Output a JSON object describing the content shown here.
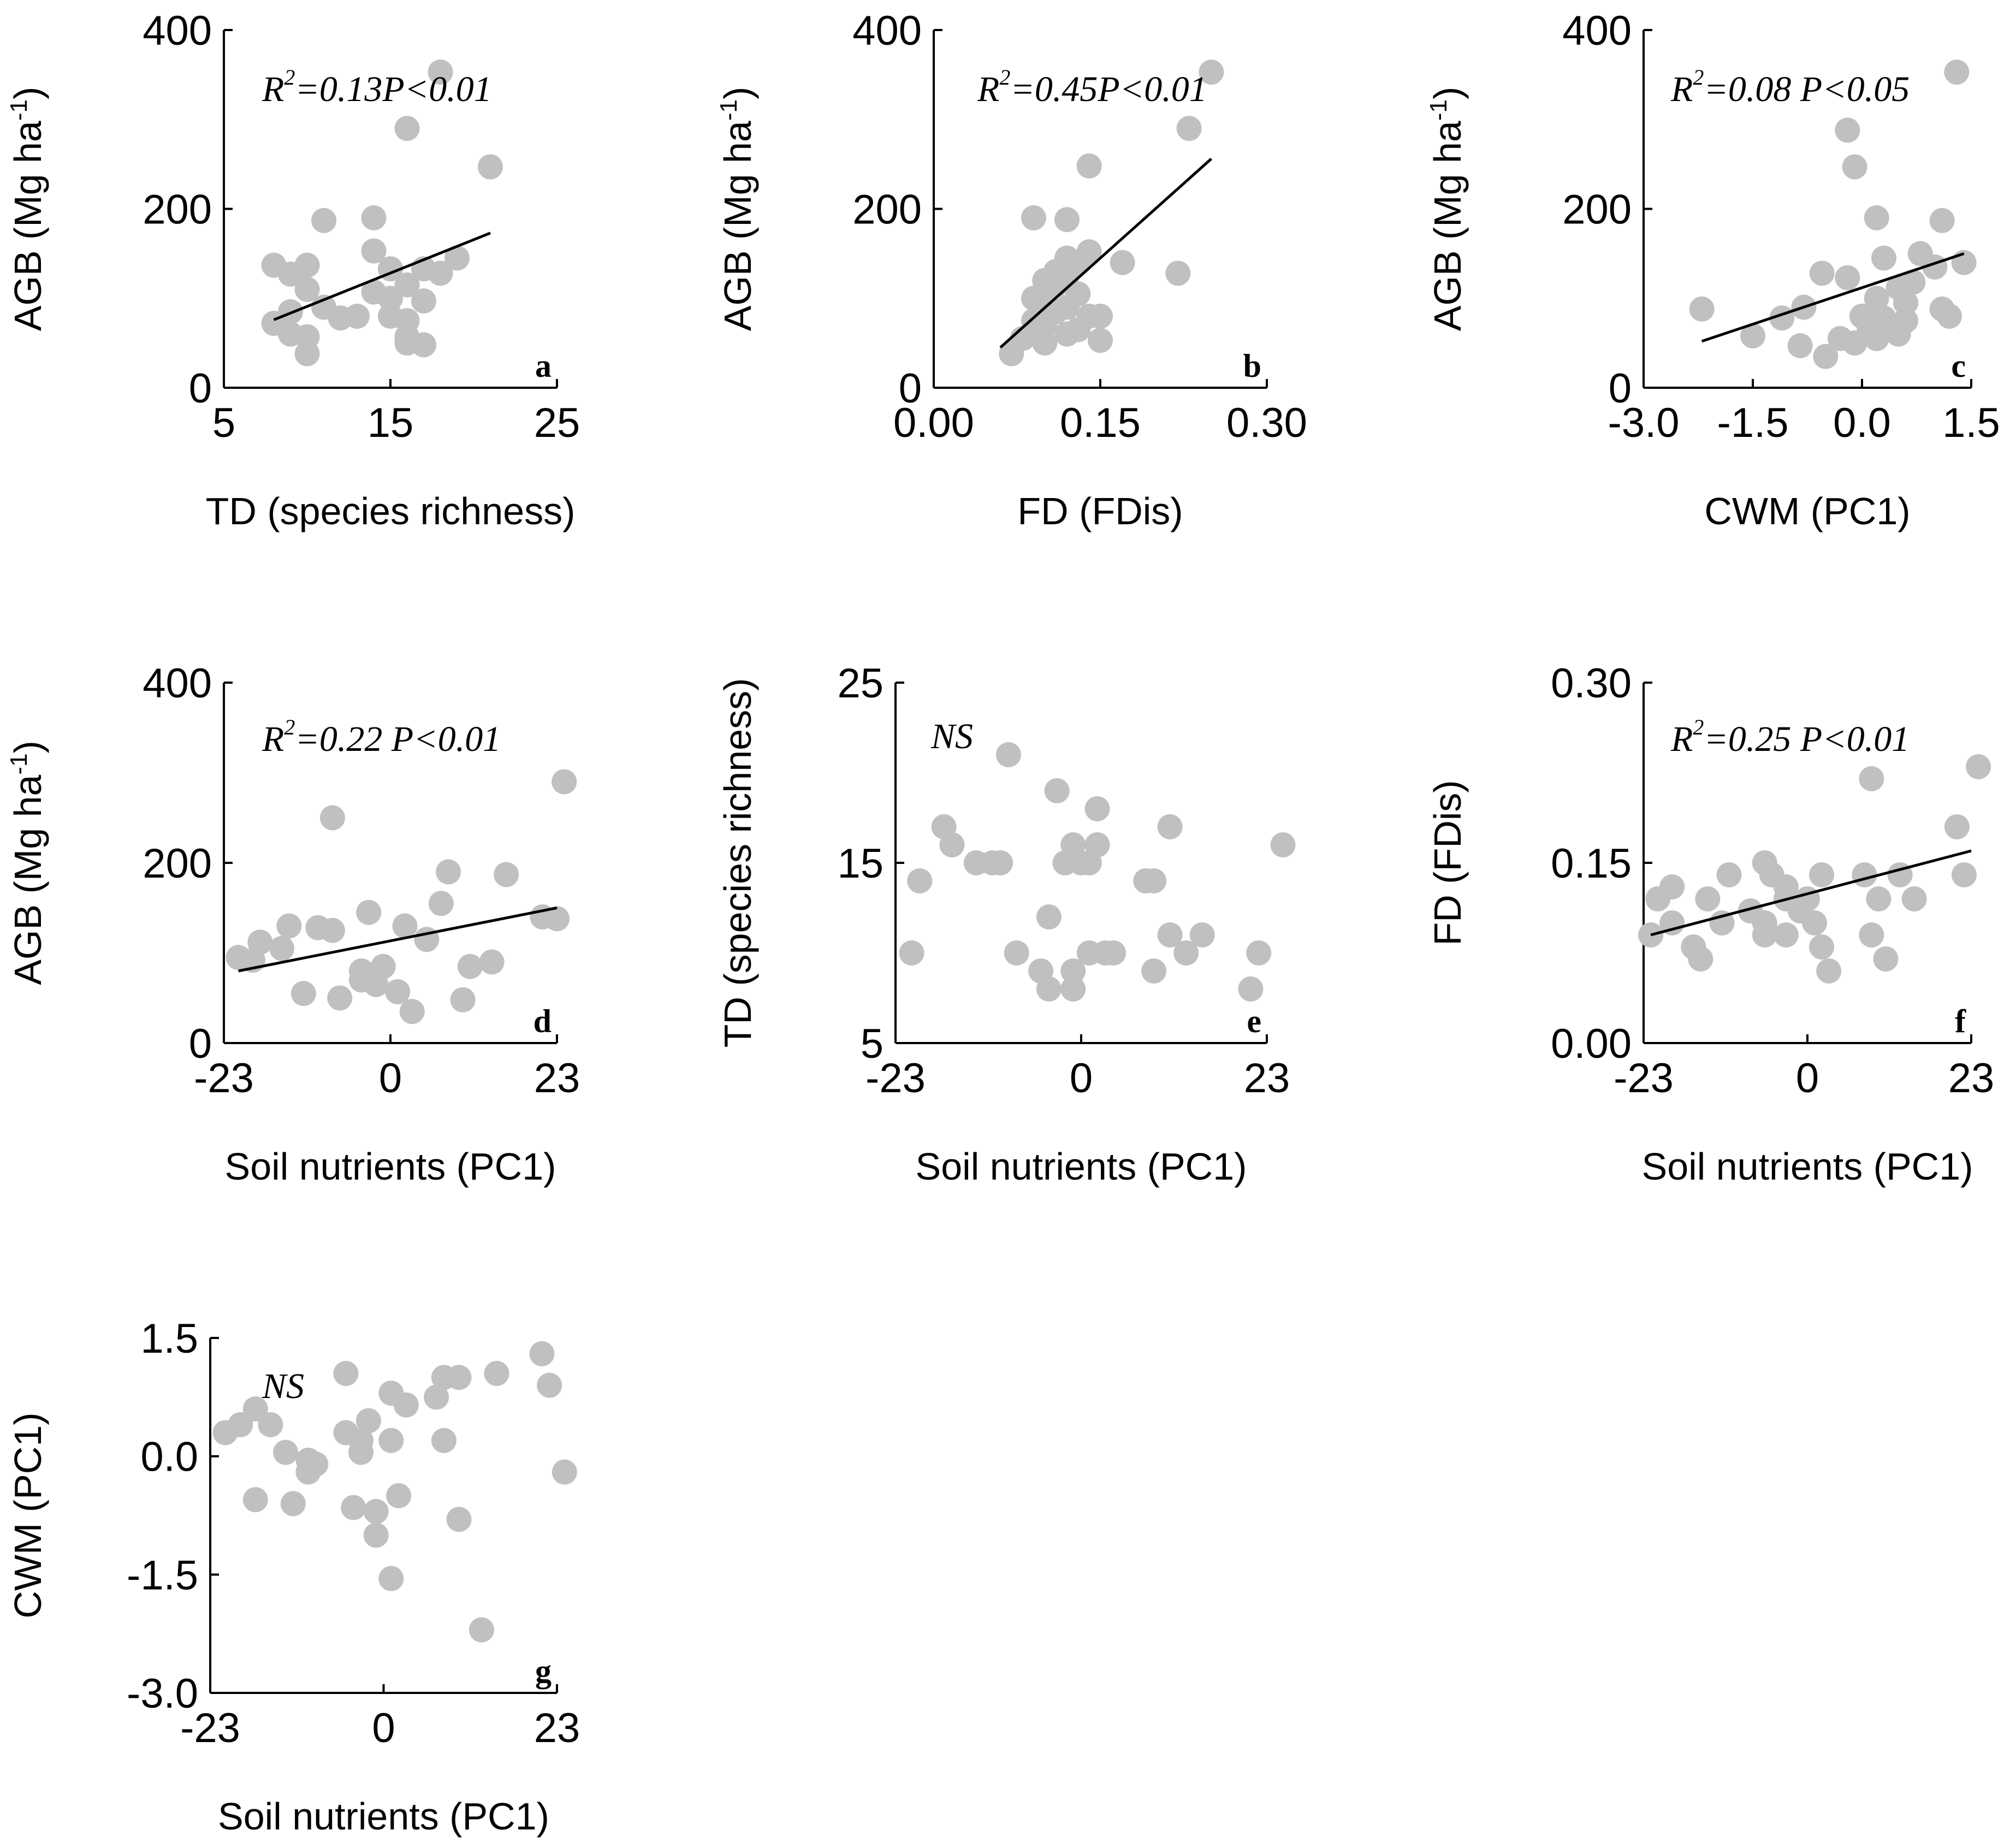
{
  "colors": {
    "points": "#c0c0c0",
    "axes": "#000000",
    "fit_line": "#000000"
  },
  "chart_data": [
    {
      "id": "a",
      "type": "scatter",
      "panel_label": "a",
      "xlabel": "TD (species richness)",
      "ylabel": "AGB (Mg ha-1)",
      "ylabel_main": "AGB (Mg ha",
      "ylabel_sup": "-1",
      "ylabel_end": ")",
      "xlim": [
        5,
        25
      ],
      "ylim": [
        0,
        400
      ],
      "xticks": [
        5,
        15,
        25
      ],
      "xtick_labels": [
        "5",
        "15",
        "25"
      ],
      "yticks": [
        0,
        200,
        400
      ],
      "ytick_labels": [
        "0",
        "200",
        "400"
      ],
      "stat_R": "R",
      "stat_sup": "2",
      "stat_rest": "=0.13P<0.01",
      "points": [
        [
          18,
          353
        ],
        [
          16,
          290
        ],
        [
          21,
          247
        ],
        [
          11,
          187
        ],
        [
          14,
          190
        ],
        [
          14,
          153
        ],
        [
          19,
          145
        ],
        [
          8,
          137
        ],
        [
          10,
          137
        ],
        [
          9,
          127
        ],
        [
          15,
          133
        ],
        [
          17,
          133
        ],
        [
          18,
          128
        ],
        [
          16,
          115
        ],
        [
          14,
          107
        ],
        [
          10,
          110
        ],
        [
          15,
          100
        ],
        [
          17,
          97
        ],
        [
          12,
          78
        ],
        [
          13,
          80
        ],
        [
          9,
          85
        ],
        [
          11,
          90
        ],
        [
          15,
          80
        ],
        [
          8,
          72
        ],
        [
          9,
          60
        ],
        [
          16,
          75
        ],
        [
          16,
          57
        ],
        [
          10,
          57
        ],
        [
          17,
          48
        ],
        [
          16,
          50
        ],
        [
          10,
          38
        ]
      ],
      "fit": [
        [
          8,
          76
        ],
        [
          21,
          173
        ]
      ]
    },
    {
      "id": "b",
      "type": "scatter",
      "panel_label": "b",
      "xlabel": "FD (FDis)",
      "ylabel": "AGB (Mg ha-1)",
      "ylabel_main": "AGB (Mg ha",
      "ylabel_sup": "-1",
      "ylabel_end": ")",
      "xlim": [
        0.0,
        0.3
      ],
      "ylim": [
        0,
        400
      ],
      "xticks": [
        0.0,
        0.15,
        0.3
      ],
      "xtick_labels": [
        "0.00",
        "0.15",
        "0.30"
      ],
      "yticks": [
        0,
        200,
        400
      ],
      "ytick_labels": [
        "0",
        "200",
        "400"
      ],
      "stat_R": "R",
      "stat_sup": "2",
      "stat_rest": "=0.45P<0.01",
      "points": [
        [
          0.25,
          353
        ],
        [
          0.23,
          290
        ],
        [
          0.14,
          248
        ],
        [
          0.09,
          190
        ],
        [
          0.12,
          188
        ],
        [
          0.14,
          152
        ],
        [
          0.12,
          145
        ],
        [
          0.13,
          140
        ],
        [
          0.17,
          140
        ],
        [
          0.22,
          128
        ],
        [
          0.11,
          130
        ],
        [
          0.12,
          125
        ],
        [
          0.1,
          120
        ],
        [
          0.11,
          115
        ],
        [
          0.1,
          110
        ],
        [
          0.13,
          105
        ],
        [
          0.09,
          100
        ],
        [
          0.1,
          95
        ],
        [
          0.12,
          90
        ],
        [
          0.11,
          85
        ],
        [
          0.14,
          80
        ],
        [
          0.15,
          80
        ],
        [
          0.09,
          75
        ],
        [
          0.1,
          70
        ],
        [
          0.13,
          65
        ],
        [
          0.09,
          60
        ],
        [
          0.12,
          60
        ],
        [
          0.08,
          55
        ],
        [
          0.1,
          50
        ],
        [
          0.15,
          53
        ],
        [
          0.07,
          38
        ]
      ],
      "fit": [
        [
          0.06,
          45
        ],
        [
          0.25,
          256
        ]
      ]
    },
    {
      "id": "c",
      "type": "scatter",
      "panel_label": "c",
      "xlabel": "CWM (PC1)",
      "ylabel": "AGB (Mg ha-1)",
      "ylabel_main": "AGB (Mg ha",
      "ylabel_sup": "-1",
      "ylabel_end": ")",
      "xlim": [
        -3.0,
        1.5
      ],
      "ylim": [
        0,
        400
      ],
      "xticks": [
        -3.0,
        -1.5,
        0.0,
        1.5
      ],
      "xtick_labels": [
        "-3.0",
        "-1.5",
        "0.0",
        "1.5"
      ],
      "yticks": [
        0,
        200,
        400
      ],
      "ytick_labels": [
        "0",
        "200",
        "400"
      ],
      "stat_R": "R",
      "stat_sup": "2",
      "stat_rest": "=0.08 P<0.05",
      "points": [
        [
          1.3,
          353
        ],
        [
          -0.2,
          288
        ],
        [
          -0.1,
          247
        ],
        [
          0.2,
          190
        ],
        [
          1.1,
          187
        ],
        [
          0.3,
          145
        ],
        [
          0.8,
          150
        ],
        [
          1.4,
          140
        ],
        [
          1.0,
          135
        ],
        [
          -0.55,
          128
        ],
        [
          -0.2,
          123
        ],
        [
          0.7,
          118
        ],
        [
          0.5,
          112
        ],
        [
          0.2,
          100
        ],
        [
          0.6,
          95
        ],
        [
          -0.8,
          90
        ],
        [
          1.1,
          88
        ],
        [
          1.2,
          80
        ],
        [
          0.0,
          80
        ],
        [
          0.3,
          78
        ],
        [
          -1.1,
          78
        ],
        [
          0.6,
          75
        ],
        [
          -2.2,
          88
        ],
        [
          0.1,
          65
        ],
        [
          0.5,
          60
        ],
        [
          -1.5,
          58
        ],
        [
          -0.3,
          55
        ],
        [
          0.2,
          55
        ],
        [
          -0.85,
          47
        ],
        [
          -0.1,
          50
        ],
        [
          -0.5,
          35
        ]
      ],
      "fit": [
        [
          -2.2,
          52
        ],
        [
          1.4,
          150
        ]
      ]
    },
    {
      "id": "d",
      "type": "scatter",
      "panel_label": "d",
      "xlabel": "Soil nutrients (PC1)",
      "ylabel": "AGB (Mg ha-1)",
      "ylabel_main": "AGB (Mg ha",
      "ylabel_sup": "-1",
      "ylabel_end": ")",
      "xlim": [
        -23,
        23
      ],
      "ylim": [
        0,
        400
      ],
      "xticks": [
        -23,
        0,
        23
      ],
      "xtick_labels": [
        "-23",
        "0",
        "23"
      ],
      "yticks": [
        0,
        200,
        400
      ],
      "ytick_labels": [
        "0",
        "200",
        "400"
      ],
      "stat_R": "R",
      "stat_sup": "2",
      "stat_rest": "=0.22 P<0.01",
      "points": [
        [
          24,
          290
        ],
        [
          -8,
          250
        ],
        [
          8,
          190
        ],
        [
          16,
          187
        ],
        [
          7,
          155
        ],
        [
          -3,
          145
        ],
        [
          21,
          140
        ],
        [
          23,
          138
        ],
        [
          2,
          130
        ],
        [
          -14,
          130
        ],
        [
          -10,
          128
        ],
        [
          -8,
          125
        ],
        [
          5,
          115
        ],
        [
          -18,
          112
        ],
        [
          -15,
          105
        ],
        [
          -21,
          95
        ],
        [
          -19,
          92
        ],
        [
          14,
          90
        ],
        [
          11,
          85
        ],
        [
          -1,
          85
        ],
        [
          -4,
          80
        ],
        [
          -4,
          70
        ],
        [
          -2,
          65
        ],
        [
          1,
          57
        ],
        [
          -12,
          55
        ],
        [
          -7,
          50
        ],
        [
          10,
          48
        ],
        [
          3,
          35
        ]
      ],
      "fit": [
        [
          -21,
          80
        ],
        [
          23,
          150
        ]
      ]
    },
    {
      "id": "e",
      "type": "scatter",
      "panel_label": "e",
      "xlabel": "Soil nutrients (PC1)",
      "ylabel": "TD (species richness)",
      "xlim": [
        -23,
        23
      ],
      "ylim": [
        5,
        25
      ],
      "xticks": [
        -23,
        0,
        23
      ],
      "xtick_labels": [
        "-23",
        "0",
        "23"
      ],
      "yticks": [
        5,
        15,
        25
      ],
      "ytick_labels": [
        "5",
        "15",
        "25"
      ],
      "stat_text": "NS",
      "points": [
        [
          -9,
          21
        ],
        [
          -3,
          19
        ],
        [
          2,
          18
        ],
        [
          -17,
          17
        ],
        [
          11,
          17
        ],
        [
          -16,
          16
        ],
        [
          -1,
          16
        ],
        [
          2,
          16
        ],
        [
          25,
          16
        ],
        [
          -13,
          15
        ],
        [
          -11,
          15
        ],
        [
          -10,
          15
        ],
        [
          0,
          15
        ],
        [
          1,
          15
        ],
        [
          -2,
          15
        ],
        [
          8,
          14
        ],
        [
          9,
          14
        ],
        [
          -20,
          14
        ],
        [
          -4,
          12
        ],
        [
          11,
          11
        ],
        [
          15,
          11
        ],
        [
          -21,
          10
        ],
        [
          -8,
          10
        ],
        [
          1,
          10
        ],
        [
          3,
          10
        ],
        [
          4,
          10
        ],
        [
          13,
          10
        ],
        [
          22,
          10
        ],
        [
          -5,
          9
        ],
        [
          -1,
          9
        ],
        [
          9,
          9
        ],
        [
          -4,
          8
        ],
        [
          -1,
          8
        ],
        [
          21,
          8
        ]
      ]
    },
    {
      "id": "f",
      "type": "scatter",
      "panel_label": "f",
      "xlabel": "Soil nutrients (PC1)",
      "ylabel": "FD (FDis)",
      "xlim": [
        -23,
        23
      ],
      "ylim": [
        0.0,
        0.3
      ],
      "xticks": [
        -23,
        0,
        23
      ],
      "xtick_labels": [
        "-23",
        "0",
        "23"
      ],
      "yticks": [
        0.0,
        0.15,
        0.3
      ],
      "ytick_labels": [
        "0.00",
        "0.15",
        "0.30"
      ],
      "stat_R": "R",
      "stat_sup": "2",
      "stat_rest": "=0.25 P<0.01",
      "points": [
        [
          24,
          0.23
        ],
        [
          9,
          0.22
        ],
        [
          21,
          0.18
        ],
        [
          -6,
          0.15
        ],
        [
          -5,
          0.14
        ],
        [
          -11,
          0.14
        ],
        [
          2,
          0.14
        ],
        [
          8,
          0.14
        ],
        [
          13,
          0.14
        ],
        [
          22,
          0.14
        ],
        [
          -3,
          0.13
        ],
        [
          -19,
          0.13
        ],
        [
          -21,
          0.12
        ],
        [
          -3,
          0.12
        ],
        [
          0,
          0.12
        ],
        [
          -14,
          0.12
        ],
        [
          10,
          0.12
        ],
        [
          -1,
          0.11
        ],
        [
          -8,
          0.11
        ],
        [
          -12,
          0.1
        ],
        [
          -6,
          0.1
        ],
        [
          -19,
          0.1
        ],
        [
          1,
          0.1
        ],
        [
          -3,
          0.09
        ],
        [
          -6,
          0.09
        ],
        [
          -22,
          0.09
        ],
        [
          9,
          0.09
        ],
        [
          -16,
          0.08
        ],
        [
          2,
          0.08
        ],
        [
          -15,
          0.07
        ],
        [
          11,
          0.07
        ],
        [
          3,
          0.06
        ],
        [
          15,
          0.12
        ]
      ],
      "fit": [
        [
          -22,
          0.09
        ],
        [
          23,
          0.16
        ]
      ]
    },
    {
      "id": "g",
      "type": "scatter",
      "panel_label": "g",
      "xlabel": "Soil nutrients (PC1)",
      "ylabel": "CWM (PC1)",
      "xlim": [
        -23,
        23
      ],
      "ylim": [
        -3.0,
        1.5
      ],
      "xticks": [
        -23,
        0,
        23
      ],
      "xtick_labels": [
        "-23",
        "0",
        "23"
      ],
      "yticks": [
        -3.0,
        -1.5,
        0.0,
        1.5
      ],
      "ytick_labels": [
        "-3.0",
        "-1.5",
        "0.0",
        "1.5"
      ],
      "stat_text": "NS",
      "points": [
        [
          21,
          1.3
        ],
        [
          -5,
          1.05
        ],
        [
          8,
          1.0
        ],
        [
          10,
          1.0
        ],
        [
          15,
          1.05
        ],
        [
          22,
          0.9
        ],
        [
          1,
          0.8
        ],
        [
          7,
          0.75
        ],
        [
          3,
          0.65
        ],
        [
          -17,
          0.6
        ],
        [
          -15,
          0.4
        ],
        [
          -19,
          0.4
        ],
        [
          -21,
          0.3
        ],
        [
          -5,
          0.3
        ],
        [
          -2,
          0.45
        ],
        [
          -3,
          0.2
        ],
        [
          8,
          0.2
        ],
        [
          1,
          0.2
        ],
        [
          -13,
          0.05
        ],
        [
          -3,
          0.05
        ],
        [
          -10,
          -0.05
        ],
        [
          -9,
          -0.1
        ],
        [
          -10,
          -0.2
        ],
        [
          24,
          -0.2
        ],
        [
          2,
          -0.5
        ],
        [
          -17,
          -0.55
        ],
        [
          -12,
          -0.6
        ],
        [
          -4,
          -0.65
        ],
        [
          -1,
          -0.7
        ],
        [
          10,
          -0.8
        ],
        [
          -1,
          -1.0
        ],
        [
          1,
          -1.55
        ],
        [
          13,
          -2.2
        ]
      ]
    }
  ]
}
